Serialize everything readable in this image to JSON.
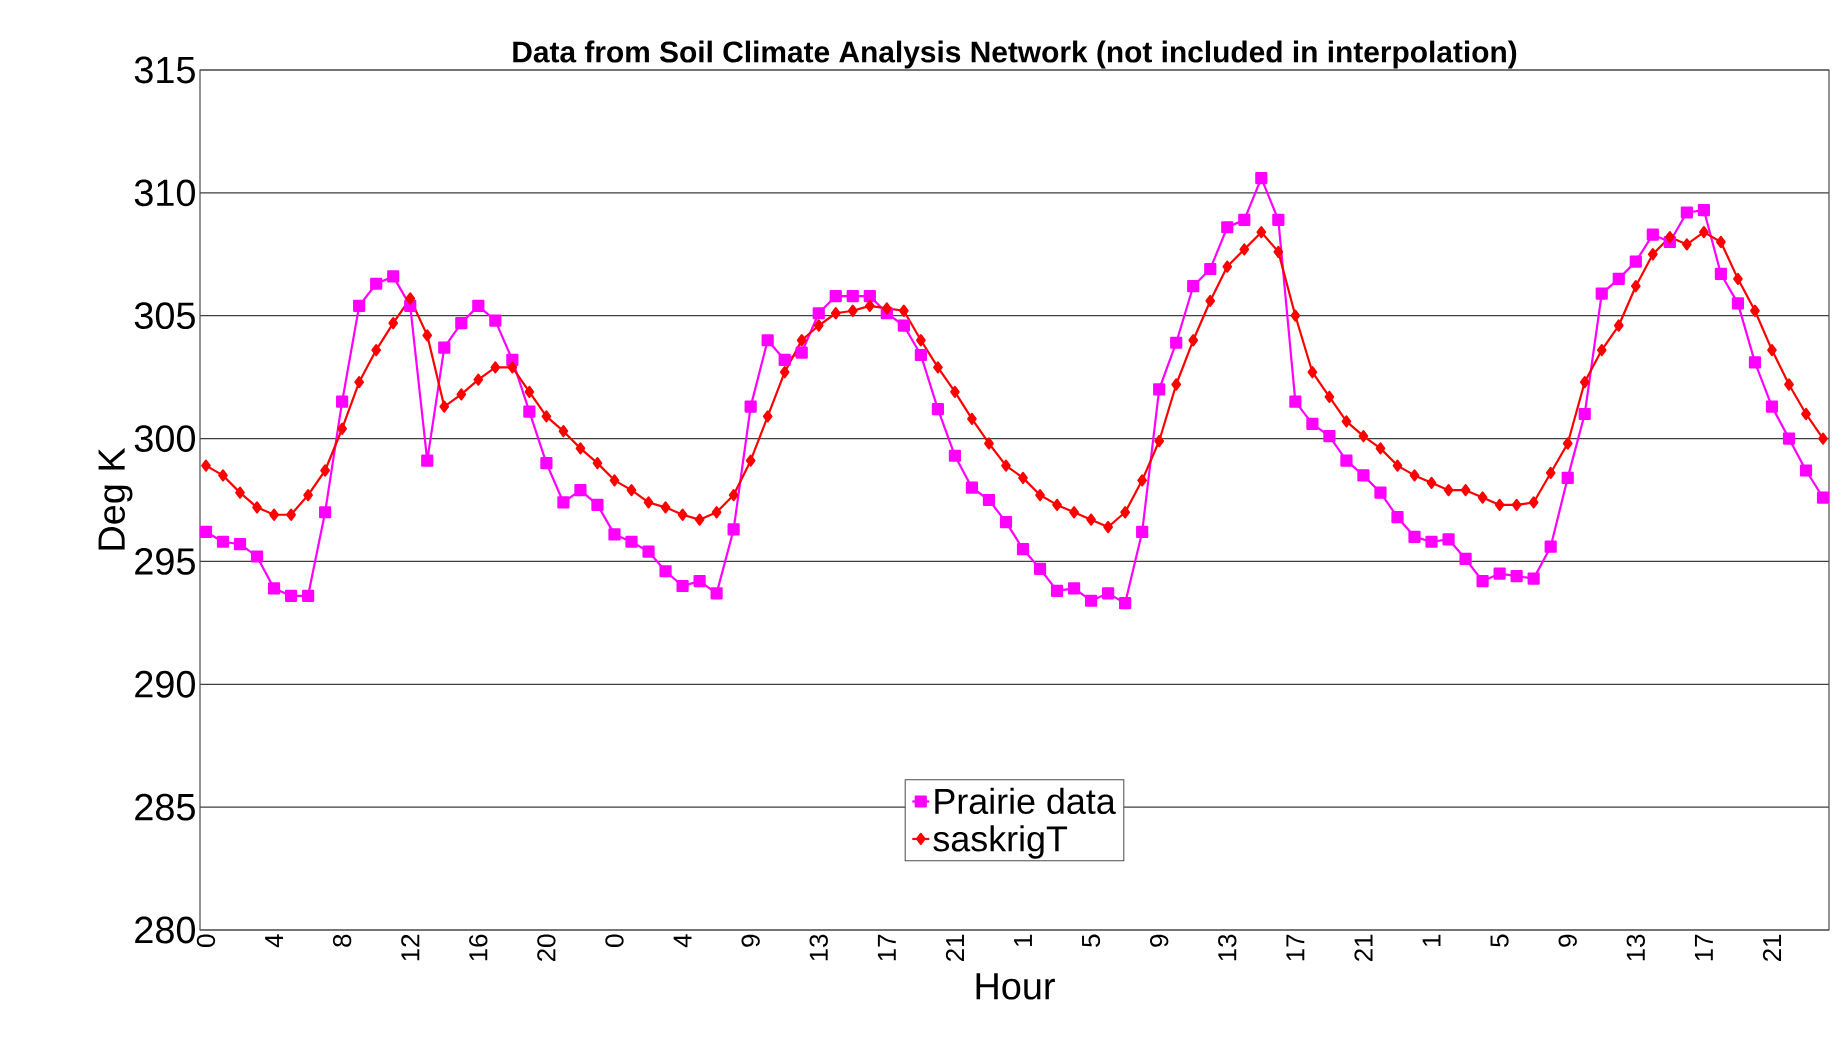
{
  "chart_data": {
    "type": "line",
    "title": "Data from Soil Climate Analysis Network (not included in interpolation)",
    "xlabel": "Hour",
    "ylabel": "Deg K",
    "categories": [
      "0",
      null,
      null,
      null,
      "4",
      null,
      null,
      null,
      "8",
      null,
      null,
      null,
      "12",
      null,
      null,
      null,
      "16",
      null,
      null,
      null,
      "20",
      null,
      null,
      null,
      "0",
      null,
      null,
      null,
      "4",
      null,
      null,
      null,
      "9",
      null,
      null,
      null,
      "13",
      null,
      null,
      null,
      "17",
      null,
      null,
      null,
      "21",
      null,
      null,
      null,
      "1",
      null,
      null,
      null,
      "5",
      null,
      null,
      null,
      "9",
      null,
      null,
      null,
      "13",
      null,
      null,
      null,
      "17",
      null,
      null,
      null,
      "21",
      null,
      null,
      null,
      "1",
      null,
      null,
      null,
      "5",
      null,
      null,
      null,
      "9",
      null,
      null,
      null,
      "13",
      null,
      null,
      null,
      "17",
      null,
      null,
      null,
      "21",
      null,
      null,
      null
    ],
    "series": [
      {
        "name": "Prairie data",
        "color": "#ff00ff",
        "marker": "square",
        "values": [
          296.2,
          295.8,
          295.7,
          295.2,
          293.9,
          293.6,
          293.6,
          297.0,
          301.5,
          305.4,
          306.3,
          306.6,
          305.4,
          299.1,
          303.7,
          304.7,
          305.4,
          304.8,
          303.2,
          301.1,
          299.0,
          297.4,
          297.9,
          297.3,
          296.1,
          295.8,
          295.4,
          294.6,
          294.0,
          294.2,
          293.7,
          296.3,
          301.3,
          304.0,
          303.2,
          303.5,
          305.1,
          305.8,
          305.8,
          305.8,
          305.1,
          304.6,
          303.4,
          301.2,
          299.3,
          298.0,
          297.5,
          296.6,
          295.5,
          294.7,
          293.8,
          293.9,
          293.4,
          293.7,
          293.3,
          296.2,
          302.0,
          303.9,
          306.2,
          306.9,
          308.6,
          308.9,
          310.6,
          308.9,
          301.5,
          300.6,
          300.1,
          299.1,
          298.5,
          297.8,
          296.8,
          296.0,
          295.8,
          295.9,
          295.1,
          294.2,
          294.5,
          294.4,
          294.3,
          295.6,
          298.4,
          301.0,
          305.9,
          306.5,
          307.2,
          308.3,
          308.0,
          309.2,
          309.3,
          306.7,
          305.5,
          303.1,
          301.3,
          300.0,
          298.7,
          297.6
        ]
      },
      {
        "name": "saskrigT",
        "color": "#ff0000",
        "marker": "diamond",
        "values": [
          298.9,
          298.5,
          297.8,
          297.2,
          296.9,
          296.9,
          297.7,
          298.7,
          300.4,
          302.3,
          303.6,
          304.7,
          305.7,
          304.2,
          301.3,
          301.8,
          302.4,
          302.9,
          302.9,
          301.9,
          300.9,
          300.3,
          299.6,
          299.0,
          298.3,
          297.9,
          297.4,
          297.2,
          296.9,
          296.7,
          297.0,
          297.7,
          299.1,
          300.9,
          302.7,
          304.0,
          304.6,
          305.1,
          305.2,
          305.4,
          305.3,
          305.2,
          304.0,
          302.9,
          301.9,
          300.8,
          299.8,
          298.9,
          298.4,
          297.7,
          297.3,
          297.0,
          296.7,
          296.4,
          297.0,
          298.3,
          299.9,
          302.2,
          304.0,
          305.6,
          307.0,
          307.7,
          308.4,
          307.6,
          305.0,
          302.7,
          301.7,
          300.7,
          300.1,
          299.6,
          298.9,
          298.5,
          298.2,
          297.9,
          297.9,
          297.6,
          297.3,
          297.3,
          297.4,
          298.6,
          299.8,
          302.3,
          303.6,
          304.6,
          306.2,
          307.5,
          308.2,
          307.9,
          308.4,
          308.0,
          306.5,
          305.2,
          303.6,
          302.2,
          301.0,
          300.0
        ]
      }
    ],
    "ylim": [
      280,
      315
    ],
    "yticks": [
      280,
      285,
      290,
      295,
      300,
      305,
      310,
      315
    ],
    "grid": "y",
    "legend": "bottom",
    "line_style": "solid"
  }
}
